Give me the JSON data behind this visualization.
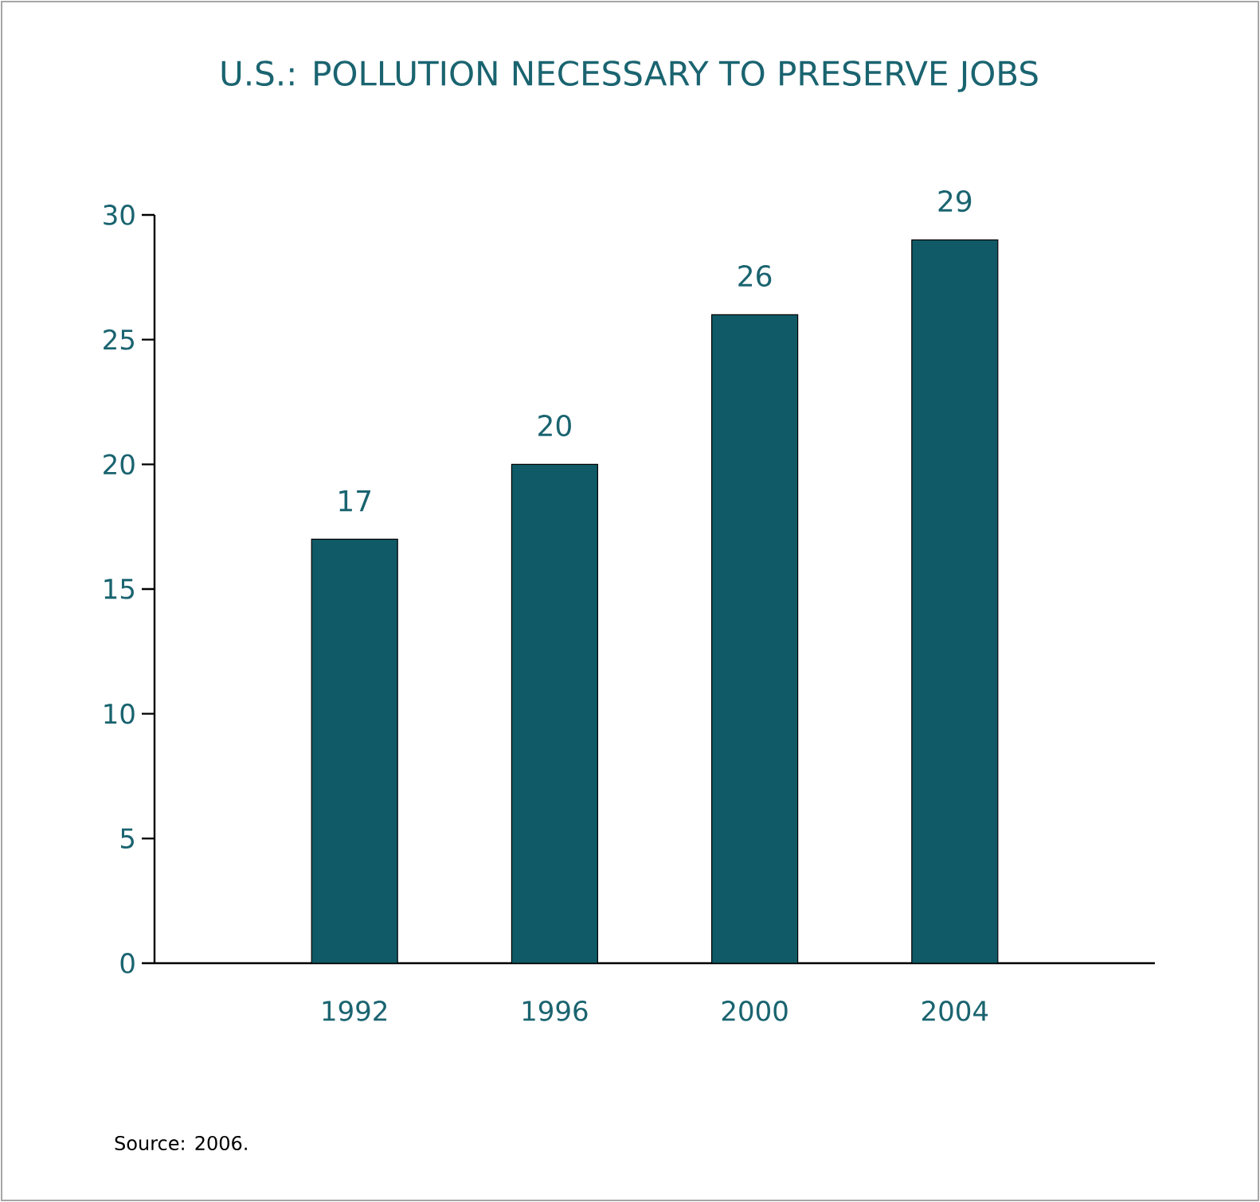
{
  "chart_data": {
    "type": "bar",
    "title": "U.S.: POLLUTION NECESSARY TO PRESERVE JOBS",
    "categories": [
      "1992",
      "1996",
      "2000",
      "2004"
    ],
    "values": [
      17,
      20,
      26,
      29
    ],
    "color": "#0f5a66",
    "ylim": [
      0,
      30
    ],
    "yticks": [
      0,
      5,
      10,
      15,
      20,
      25,
      30
    ],
    "grid": false,
    "data_labels": true,
    "annotations": [
      "Source: 2006."
    ]
  }
}
